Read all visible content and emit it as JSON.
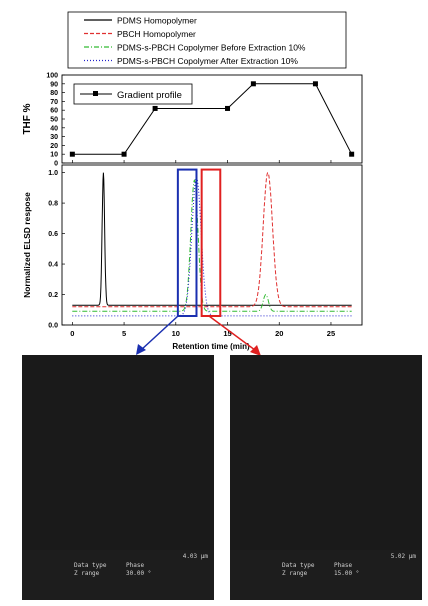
{
  "chart_data": [
    {
      "type": "line",
      "xlabel": "",
      "ylabel": "THF %",
      "xlim": [
        -1,
        28
      ],
      "ylim": [
        0,
        100
      ],
      "yticks": [
        "0",
        "10",
        "20",
        "30",
        "40",
        "50",
        "60",
        "70",
        "80",
        "90",
        "100"
      ],
      "legend": [
        "Gradient profile"
      ],
      "legend_position": "top-left",
      "series": [
        {
          "name": "Gradient profile",
          "color": "#000000",
          "marker": "square",
          "x": [
            0,
            5,
            8,
            15,
            17.5,
            23.5,
            27
          ],
          "y": [
            10,
            10,
            62,
            62,
            90,
            90,
            10
          ]
        }
      ]
    },
    {
      "type": "line",
      "xlabel": "Retention time (min)",
      "ylabel": "Normalized ELSD respose",
      "xlim": [
        -1,
        28
      ],
      "ylim": [
        0,
        1.05
      ],
      "xticks": [
        "0",
        "5",
        "10",
        "15",
        "20",
        "25"
      ],
      "yticks": [
        "0.0",
        "0.2",
        "0.4",
        "0.6",
        "0.8",
        "1.0"
      ],
      "legend": [
        "PDMS Homopolymer",
        "PBCH Homopolymer",
        "PDMS-s-PBCH Copolymer Before Extraction 10%",
        "PDMS-s-PBCH Copolymer After Extraction 10%"
      ],
      "legend_position": "top",
      "series": [
        {
          "name": "PDMS Homopolymer",
          "color": "#000000",
          "style": "solid",
          "baseline": 0.13,
          "peak_x": 3.0,
          "peak_y": 1.0,
          "width": 0.12
        },
        {
          "name": "PBCH Homopolymer",
          "color": "#e03030",
          "style": "dashed",
          "baseline": 0.12,
          "peak_x": 18.9,
          "peak_y": 1.0,
          "width": 0.45
        },
        {
          "name": "PDMS-s-PBCH Copolymer Before Extraction 10%",
          "color": "#33bb33",
          "style": "dashdot",
          "baseline": 0.09,
          "peak_x": 11.8,
          "peak_y": 0.95,
          "width": 0.35,
          "secondary_peak_x": 18.7,
          "secondary_peak_y": 0.2,
          "secondary_width": 0.25
        },
        {
          "name": "PDMS-s-PBCH Copolymer After Extraction 10%",
          "color": "#2222cc",
          "style": "dotted",
          "baseline": 0.06,
          "peak_x": 12.0,
          "peak_y": 0.97,
          "width": 0.45
        }
      ],
      "highlights": [
        {
          "color": "#1a2fb0",
          "x_from": 10.2,
          "x_to": 12.0,
          "y_to": 1.02
        },
        {
          "color": "#e02020",
          "x_from": 12.5,
          "x_to": 14.3,
          "y_to": 1.02
        }
      ]
    }
  ],
  "afm_panels": [
    {
      "scan_size": "4.03 µm",
      "data_type_label": "Data type",
      "data_type_value": "Phase",
      "z_range_label": "Z range",
      "z_range_value": "30.00 °"
    },
    {
      "scan_size": "5.02 µm",
      "data_type_label": "Data type",
      "data_type_value": "Phase",
      "z_range_label": "Z range",
      "z_range_value": "15.00 °"
    }
  ]
}
